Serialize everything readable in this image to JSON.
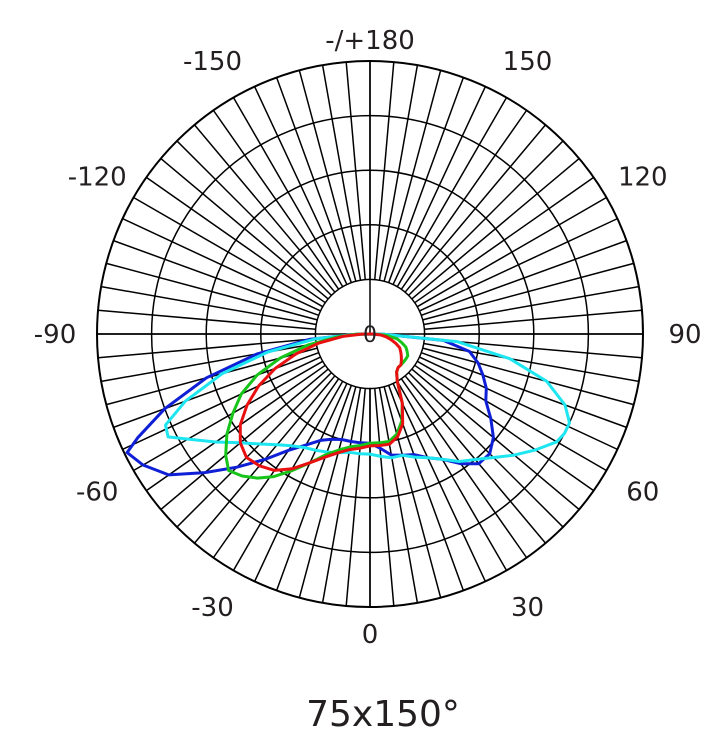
{
  "chart_data": {
    "type": "polar",
    "caption": "75x150°",
    "center_label": "0",
    "angle_labels": [
      {
        "angle": 180,
        "text": "-/+180"
      },
      {
        "angle": 150,
        "text": "150"
      },
      {
        "angle": -150,
        "text": "-150"
      },
      {
        "angle": 120,
        "text": "120"
      },
      {
        "angle": -120,
        "text": "-120"
      },
      {
        "angle": 90,
        "text": "90"
      },
      {
        "angle": -90,
        "text": "-90"
      },
      {
        "angle": 60,
        "text": "60"
      },
      {
        "angle": -60,
        "text": "-60"
      },
      {
        "angle": 30,
        "text": "30"
      },
      {
        "angle": -30,
        "text": "-30"
      },
      {
        "angle": 0,
        "text": "0"
      }
    ],
    "grid": true,
    "radial_step_deg": 5,
    "series": [
      {
        "color": "#0f1fd6",
        "points": [
          [
            -89,
            0.05
          ],
          [
            -85,
            0.22
          ],
          [
            -80,
            0.42
          ],
          [
            -75,
            0.62
          ],
          [
            -70,
            0.8
          ],
          [
            -66,
            0.93
          ],
          [
            -64,
            0.99
          ],
          [
            -60,
            0.96
          ],
          [
            -55,
            0.9
          ],
          [
            -50,
            0.79
          ],
          [
            -45,
            0.69
          ],
          [
            -40,
            0.6
          ],
          [
            -35,
            0.52
          ],
          [
            -30,
            0.47
          ],
          [
            -25,
            0.43
          ],
          [
            -20,
            0.41
          ],
          [
            -15,
            0.4
          ],
          [
            -10,
            0.4
          ],
          [
            -5,
            0.4
          ],
          [
            0,
            0.4
          ],
          [
            5,
            0.42
          ],
          [
            10,
            0.45
          ],
          [
            15,
            0.46
          ],
          [
            20,
            0.47
          ],
          [
            25,
            0.5
          ],
          [
            30,
            0.53
          ],
          [
            35,
            0.58
          ],
          [
            40,
            0.62
          ],
          [
            45,
            0.62
          ],
          [
            50,
            0.59
          ],
          [
            55,
            0.54
          ],
          [
            60,
            0.49
          ],
          [
            65,
            0.47
          ],
          [
            70,
            0.44
          ],
          [
            75,
            0.41
          ],
          [
            80,
            0.37
          ],
          [
            85,
            0.27
          ],
          [
            89,
            0.05
          ]
        ]
      },
      {
        "color": "#1de6f0",
        "points": [
          [
            -89,
            0.05
          ],
          [
            -85,
            0.2
          ],
          [
            -80,
            0.38
          ],
          [
            -75,
            0.56
          ],
          [
            -70,
            0.72
          ],
          [
            -66,
            0.82
          ],
          [
            -63,
            0.83
          ],
          [
            -60,
            0.77
          ],
          [
            -55,
            0.69
          ],
          [
            -50,
            0.62
          ],
          [
            -45,
            0.57
          ],
          [
            -40,
            0.53
          ],
          [
            -35,
            0.5
          ],
          [
            -30,
            0.48
          ],
          [
            -25,
            0.47
          ],
          [
            -20,
            0.46
          ],
          [
            -15,
            0.45
          ],
          [
            -10,
            0.44
          ],
          [
            -5,
            0.44
          ],
          [
            0,
            0.44
          ],
          [
            5,
            0.45
          ],
          [
            10,
            0.46
          ],
          [
            15,
            0.46
          ],
          [
            20,
            0.48
          ],
          [
            25,
            0.5
          ],
          [
            30,
            0.53
          ],
          [
            35,
            0.57
          ],
          [
            40,
            0.6
          ],
          [
            45,
            0.64
          ],
          [
            50,
            0.69
          ],
          [
            55,
            0.74
          ],
          [
            60,
            0.79
          ],
          [
            63,
            0.8
          ],
          [
            66,
            0.8
          ],
          [
            70,
            0.76
          ],
          [
            75,
            0.67
          ],
          [
            80,
            0.52
          ],
          [
            85,
            0.32
          ],
          [
            89,
            0.05
          ]
        ]
      },
      {
        "color": "#17c41a",
        "points": [
          [
            -89,
            0.05
          ],
          [
            -85,
            0.12
          ],
          [
            -80,
            0.23
          ],
          [
            -75,
            0.34
          ],
          [
            -70,
            0.44
          ],
          [
            -65,
            0.52
          ],
          [
            -60,
            0.58
          ],
          [
            -55,
            0.64
          ],
          [
            -50,
            0.69
          ],
          [
            -46,
            0.72
          ],
          [
            -42,
            0.7
          ],
          [
            -38,
            0.67
          ],
          [
            -34,
            0.63
          ],
          [
            -30,
            0.58
          ],
          [
            -25,
            0.52
          ],
          [
            -20,
            0.47
          ],
          [
            -15,
            0.44
          ],
          [
            -10,
            0.42
          ],
          [
            -5,
            0.41
          ],
          [
            0,
            0.4
          ],
          [
            5,
            0.4
          ],
          [
            10,
            0.4
          ],
          [
            15,
            0.38
          ],
          [
            20,
            0.34
          ],
          [
            25,
            0.28
          ],
          [
            30,
            0.2
          ],
          [
            35,
            0.17
          ],
          [
            40,
            0.16
          ],
          [
            45,
            0.16
          ],
          [
            50,
            0.16
          ],
          [
            55,
            0.16
          ],
          [
            60,
            0.16
          ],
          [
            65,
            0.15
          ],
          [
            70,
            0.14
          ],
          [
            75,
            0.12
          ],
          [
            80,
            0.1
          ],
          [
            85,
            0.06
          ],
          [
            89,
            0.02
          ]
        ]
      },
      {
        "color": "#e81010",
        "points": [
          [
            -89,
            0.03
          ],
          [
            -85,
            0.1
          ],
          [
            -80,
            0.19
          ],
          [
            -75,
            0.28
          ],
          [
            -70,
            0.37
          ],
          [
            -65,
            0.45
          ],
          [
            -60,
            0.52
          ],
          [
            -55,
            0.58
          ],
          [
            -50,
            0.62
          ],
          [
            -45,
            0.64
          ],
          [
            -40,
            0.63
          ],
          [
            -35,
            0.61
          ],
          [
            -30,
            0.57
          ],
          [
            -25,
            0.52
          ],
          [
            -20,
            0.48
          ],
          [
            -15,
            0.45
          ],
          [
            -10,
            0.43
          ],
          [
            -5,
            0.42
          ],
          [
            0,
            0.41
          ],
          [
            5,
            0.41
          ],
          [
            10,
            0.41
          ],
          [
            15,
            0.39
          ],
          [
            20,
            0.35
          ],
          [
            25,
            0.28
          ],
          [
            30,
            0.2
          ],
          [
            35,
            0.17
          ],
          [
            40,
            0.16
          ],
          [
            45,
            0.16
          ],
          [
            50,
            0.15
          ],
          [
            55,
            0.14
          ],
          [
            60,
            0.13
          ],
          [
            65,
            0.12
          ],
          [
            70,
            0.1
          ],
          [
            75,
            0.08
          ],
          [
            80,
            0.06
          ],
          [
            85,
            0.04
          ],
          [
            89,
            0.01
          ]
        ]
      }
    ]
  }
}
